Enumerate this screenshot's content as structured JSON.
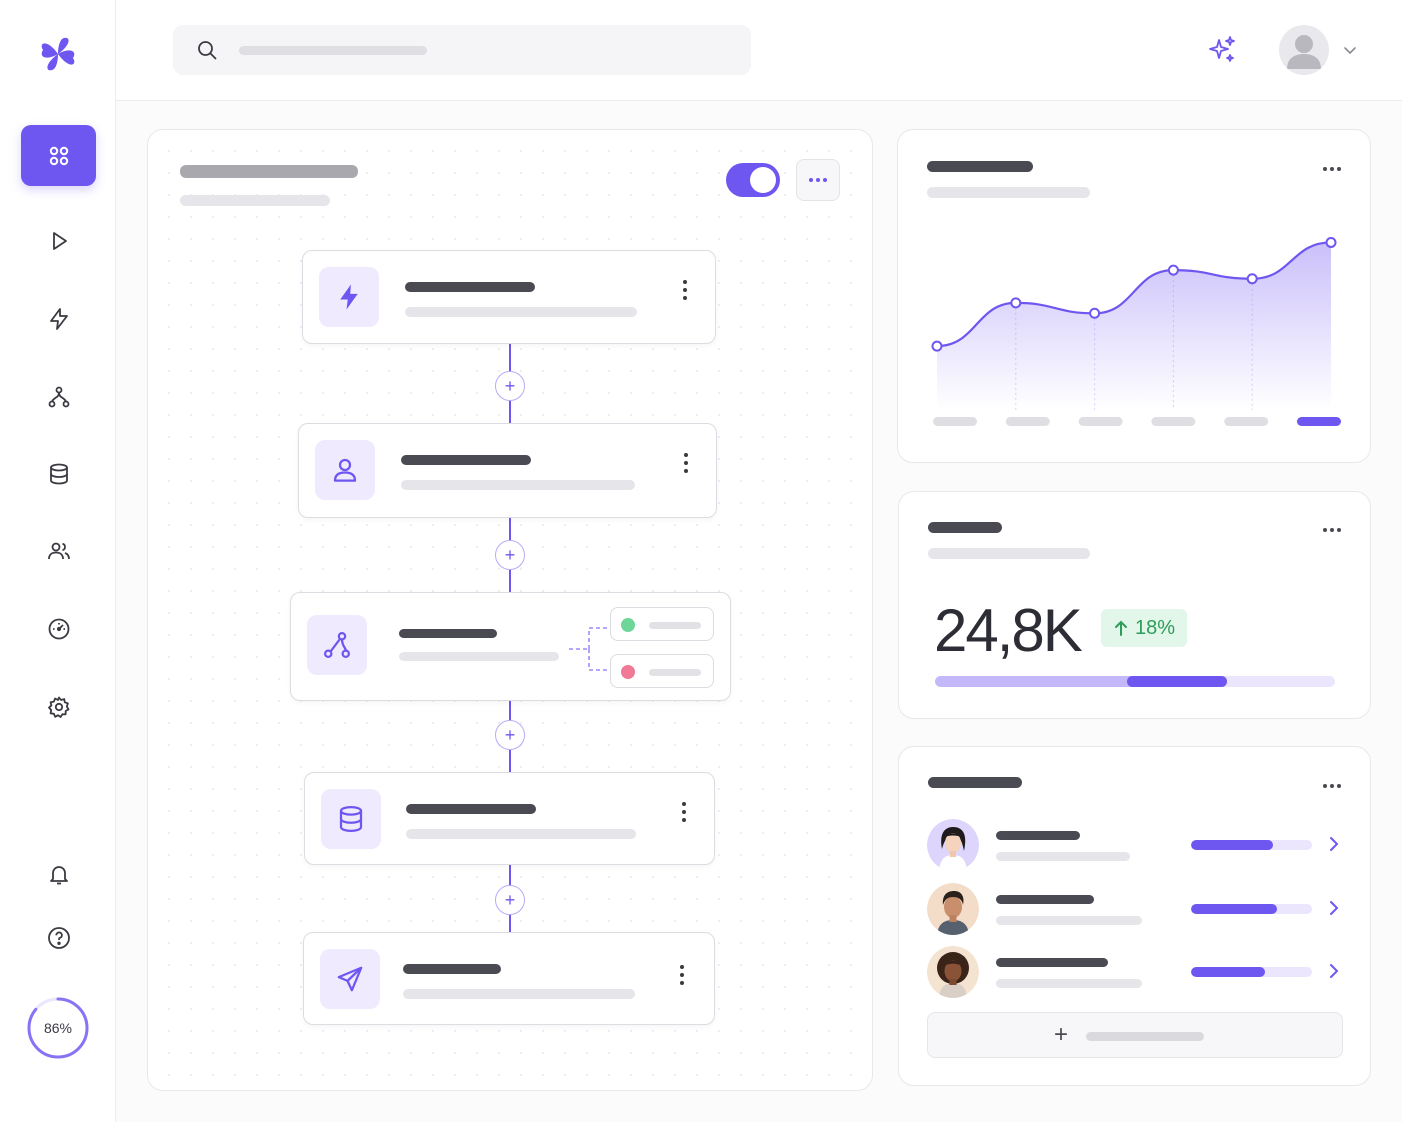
{
  "app": {
    "accent": "#6e56f0",
    "logo_icon": "four-petal-logo-icon"
  },
  "sidebar": {
    "items": [
      {
        "name": "dashboard",
        "icon": "grid-icon",
        "active": true
      },
      {
        "name": "run",
        "icon": "play-icon",
        "active": false
      },
      {
        "name": "triggers",
        "icon": "lightning-icon",
        "active": false
      },
      {
        "name": "workflows",
        "icon": "branch-icon",
        "active": false
      },
      {
        "name": "data",
        "icon": "database-icon",
        "active": false
      },
      {
        "name": "users",
        "icon": "users-icon",
        "active": false
      },
      {
        "name": "monitoring",
        "icon": "gauge-icon",
        "active": false
      },
      {
        "name": "settings",
        "icon": "gear-icon",
        "active": false
      }
    ],
    "bottom": [
      {
        "name": "notifications",
        "icon": "bell-icon"
      },
      {
        "name": "help",
        "icon": "help-circle-icon"
      }
    ],
    "usage_percent": 86,
    "usage_label": "86%"
  },
  "header": {
    "search_icon": "search-icon",
    "ai_icon": "sparkle-icon",
    "avatar_icon": "user-avatar-icon"
  },
  "workflow": {
    "enabled": true,
    "steps": [
      {
        "icon": "lightning-icon",
        "kind": "trigger"
      },
      {
        "icon": "user-icon",
        "kind": "action"
      },
      {
        "icon": "branch-icon",
        "kind": "condition",
        "branches": [
          {
            "status": "success",
            "color": "#6fd69a"
          },
          {
            "status": "failure",
            "color": "#f07a96"
          }
        ]
      },
      {
        "icon": "database-icon",
        "kind": "action"
      },
      {
        "icon": "send-icon",
        "kind": "action"
      }
    ]
  },
  "chart_card": {
    "chart_data": {
      "type": "area",
      "x": [
        1,
        2,
        3,
        4,
        5,
        6
      ],
      "series": [
        {
          "values": [
            37,
            62,
            56,
            81,
            76,
            97
          ]
        }
      ],
      "ylim": [
        0,
        110
      ],
      "grid": false,
      "highlight_index": 5
    }
  },
  "stat_card": {
    "value": "24,8K",
    "delta": "18%",
    "delta_icon": "arrow-up-icon",
    "progress_light": 0.73,
    "progress_dark_start": 0.48
  },
  "team_card": {
    "members": [
      {
        "avatar": "woman-avatar-icon",
        "progress": 0.68
      },
      {
        "avatar": "man-avatar-icon",
        "progress": 0.71
      },
      {
        "avatar": "woman-curly-avatar-icon",
        "progress": 0.61
      }
    ],
    "add_icon": "plus-icon"
  }
}
